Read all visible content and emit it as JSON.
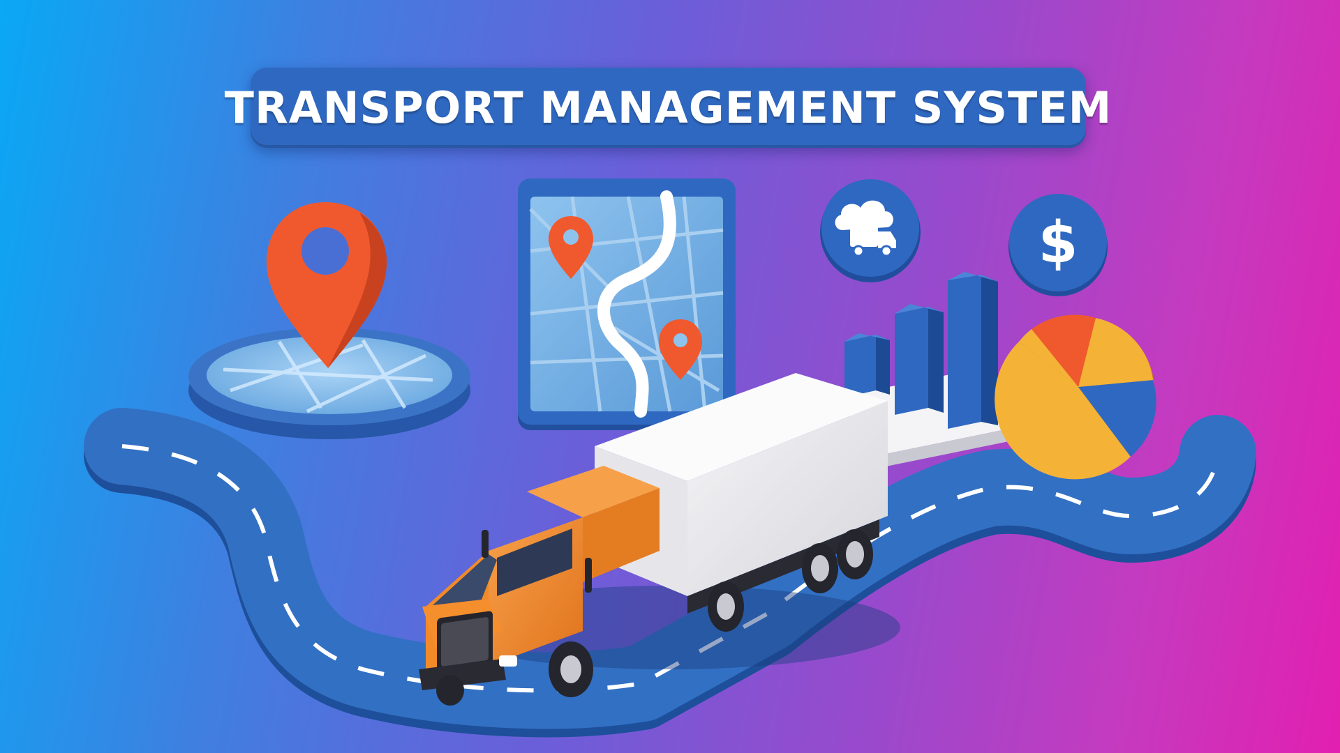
{
  "title": "TRANSPORT MANAGEMENT SYSTEM",
  "icons": {
    "location_pin": "location-pin-icon",
    "route_map": "route-map-icon",
    "cloud_truck": "cloud-truck-icon",
    "dollar": "dollar-icon",
    "dollar_symbol": "$",
    "bar_chart": "bar-chart-icon",
    "pie_chart": "pie-chart-icon",
    "truck": "truck-icon"
  },
  "colors": {
    "gradient_start": "#0aa8f5",
    "gradient_end": "#e21fb0",
    "banner": "#2f68c1",
    "accent_orange": "#f0592e",
    "truck_orange": "#f28a2a",
    "chart_blue": "#2f68c1",
    "pie_yellow": "#f4b237"
  }
}
